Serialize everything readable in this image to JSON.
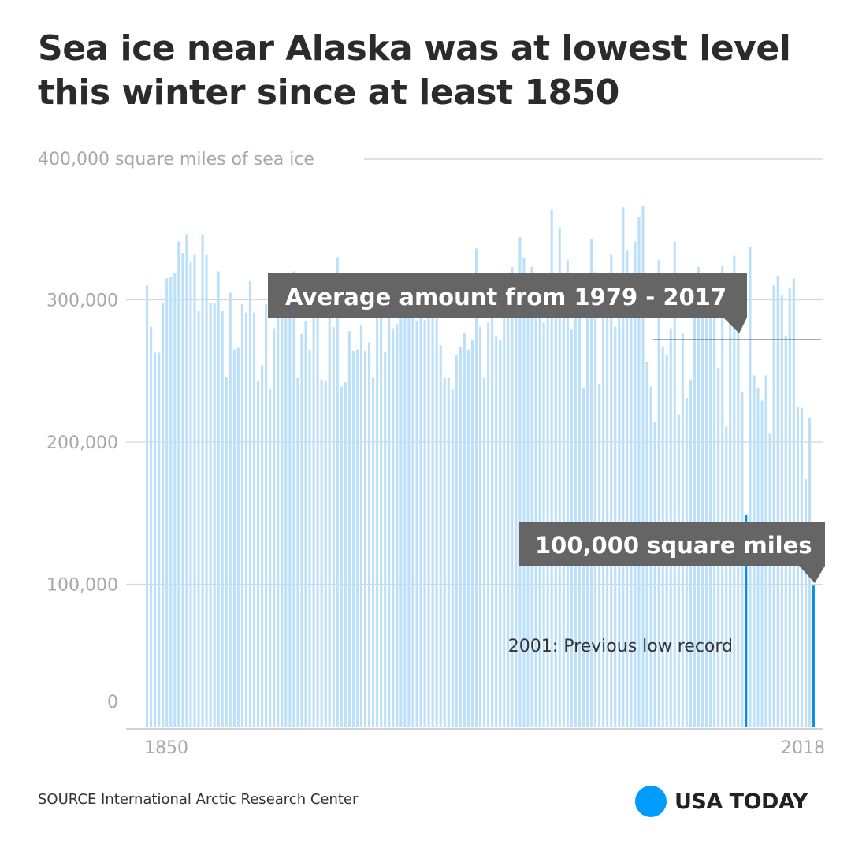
{
  "title": "Sea ice near Alaska was at lowest level this winter since at least 1850",
  "source": "SOURCE International Arctic Research Center",
  "brand": {
    "name": "USA TODAY",
    "color": "#009bff"
  },
  "colors": {
    "bar": "#bde0fa",
    "highlight": "#0a8fe6",
    "grid": "#d6d6d6",
    "callout": "#656565"
  },
  "chart_data": {
    "type": "bar",
    "title": "Sea ice near Alaska was at lowest level this winter since at least 1850",
    "ylabel": "400,000 square miles of sea ice",
    "ylim": [
      0,
      400000
    ],
    "yticks": [
      {
        "value": 0,
        "label": "0"
      },
      {
        "value": 100000,
        "label": "100,000"
      },
      {
        "value": 200000,
        "label": "200,000"
      },
      {
        "value": 300000,
        "label": "300,000"
      },
      {
        "value": 400000,
        "label": "400,000 square miles of sea ice"
      }
    ],
    "xticks": [
      {
        "year": 1850,
        "label": "1850"
      },
      {
        "year": 2018,
        "label": "2018"
      }
    ],
    "start_year": 1850,
    "values": [
      310000,
      281000,
      263000,
      263000,
      298000,
      315000,
      316000,
      319000,
      341000,
      333000,
      346000,
      327000,
      332000,
      292000,
      346000,
      332000,
      298000,
      298000,
      320000,
      292000,
      246000,
      305000,
      265000,
      266000,
      297000,
      291000,
      313000,
      291000,
      243000,
      254000,
      297000,
      237000,
      280000,
      290000,
      289000,
      289000,
      290000,
      320000,
      245000,
      276000,
      285000,
      265000,
      313000,
      295000,
      244000,
      243000,
      291000,
      281000,
      330000,
      239000,
      242000,
      278000,
      264000,
      265000,
      282000,
      264000,
      270000,
      245000,
      313000,
      313000,
      263000,
      290000,
      280000,
      283000,
      318000,
      293000,
      294000,
      298000,
      285000,
      295000,
      286000,
      295000,
      296000,
      296000,
      268000,
      245000,
      245000,
      237000,
      261000,
      267000,
      277000,
      265000,
      272000,
      336000,
      281000,
      245000,
      284000,
      291000,
      274000,
      272000,
      310000,
      310000,
      323000,
      294000,
      344000,
      329000,
      290000,
      323000,
      300000,
      306000,
      284000,
      296000,
      363000,
      295000,
      351000,
      287000,
      328000,
      279000,
      298000,
      298000,
      238000,
      300000,
      343000,
      320000,
      241000,
      311000,
      290000,
      332000,
      281000,
      292000,
      365000,
      335000,
      290000,
      341000,
      358000,
      366000,
      256000,
      239000,
      214000,
      328000,
      267000,
      261000,
      280000,
      341000,
      219000,
      277000,
      231000,
      244000,
      295000,
      323000,
      296000,
      299000,
      301000,
      317000,
      252000,
      324000,
      211000,
      294000,
      331000,
      298000,
      235000,
      149000,
      337000,
      247000,
      238000,
      229000,
      247000,
      206000,
      310000,
      317000,
      303000,
      275000,
      308000,
      315000,
      225000,
      224000,
      174000,
      217000,
      99000
    ],
    "average": {
      "value": 272000,
      "label": "Average amount from 1979 - 2017",
      "from_year": 1979,
      "to_year": 2017
    },
    "highlights": [
      {
        "year": 2001,
        "value": 149000,
        "label": "2001: Previous low record"
      },
      {
        "year": 2018,
        "value": 99000,
        "label": "100,000 square miles"
      }
    ]
  }
}
